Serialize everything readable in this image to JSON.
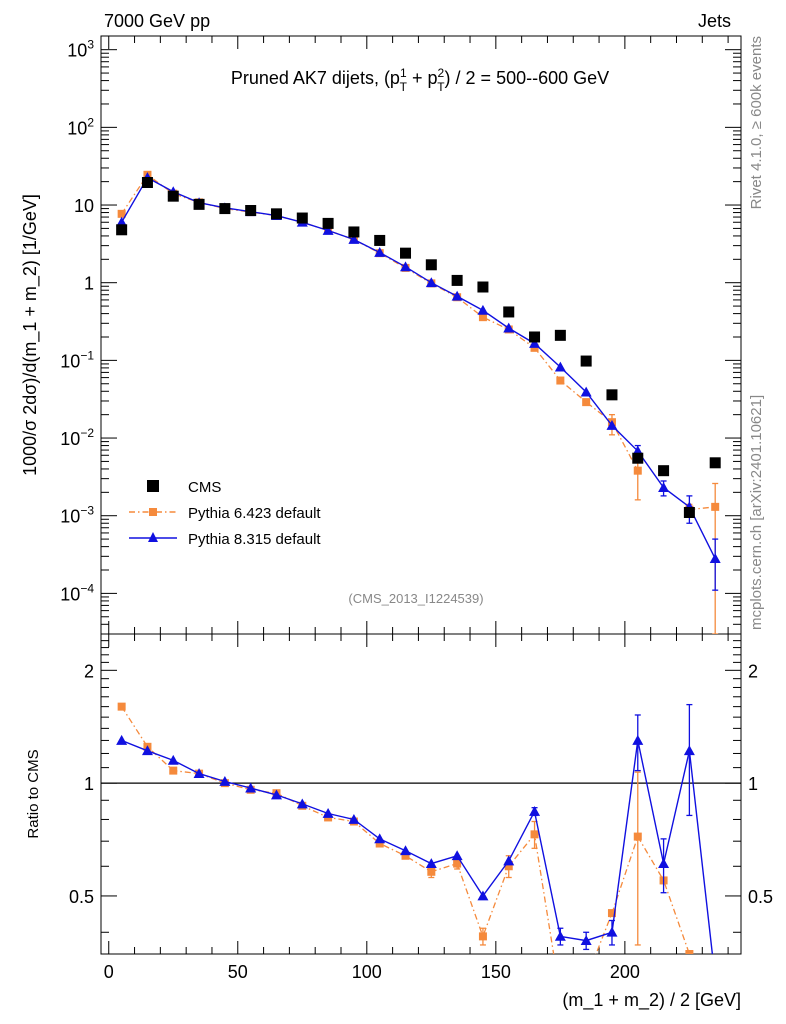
{
  "header": {
    "left": "7000 GeV pp",
    "right": "Jets",
    "rivet_label": "Rivet 4.1.0, ≥ 600k events",
    "mcplots_label": "mcplots.cern.ch [arXiv:2401.10621]",
    "analysis": "(CMS_2013_I1224539)"
  },
  "colors": {
    "cms": "#000000",
    "pythia6": "#f58a3c",
    "pythia8": "#1010e0"
  },
  "chart_data": [
    {
      "type": "scatter",
      "panel": "main",
      "title": "Pruned AK7 dijets, (p_T^1 + p_T^2) / 2 = 500--600 GeV",
      "title_parts": {
        "pre": "Pruned AK7 dijets, (p",
        "sup1": "1",
        "sub1": "T",
        "mid": " + p",
        "sup2": "2",
        "sub2": "T",
        "post": ") / 2 = 500--600 GeV"
      },
      "ylabel": "1000/σ   2dσ)/d(m_1 + m_2) [1/GeV]",
      "yscale": "log",
      "ylim": [
        3e-05,
        1500
      ],
      "xlim": [
        -3,
        245
      ],
      "y_ticks": [
        {
          "value": 0.0001,
          "base": "10",
          "exp": "−4"
        },
        {
          "value": 0.001,
          "base": "10",
          "exp": "−3"
        },
        {
          "value": 0.01,
          "base": "10",
          "exp": "−2"
        },
        {
          "value": 0.1,
          "base": "10",
          "exp": "−1"
        },
        {
          "value": 1,
          "base": "1",
          "exp": ""
        },
        {
          "value": 10,
          "base": "10",
          "exp": ""
        },
        {
          "value": 100,
          "base": "10",
          "exp": "2"
        },
        {
          "value": 1000,
          "base": "10",
          "exp": "3"
        }
      ],
      "x": [
        5,
        15,
        25,
        35,
        45,
        55,
        65,
        75,
        85,
        95,
        105,
        115,
        125,
        135,
        145,
        155,
        165,
        175,
        185,
        195,
        205,
        215,
        225,
        235
      ],
      "series": [
        {
          "name": "CMS",
          "style": "square",
          "values": [
            4.8,
            19.5,
            13,
            10.2,
            9.0,
            8.5,
            7.7,
            6.8,
            5.8,
            4.5,
            3.5,
            2.4,
            1.7,
            1.07,
            0.88,
            0.42,
            0.2,
            0.21,
            0.098,
            0.036,
            0.0055,
            0.0038,
            0.0011,
            0.0048
          ]
        },
        {
          "name": "Pythia 6.423 default",
          "style": "dashdot-square",
          "values": [
            7.7,
            24.5,
            14,
            10.8,
            9.0,
            8.1,
            7.3,
            6.0,
            4.7,
            3.6,
            2.4,
            1.55,
            0.98,
            0.65,
            0.36,
            0.25,
            0.145,
            0.055,
            0.029,
            0.016,
            0.0038,
            null,
            0.0012,
            0.0013
          ],
          "errors": [
            [
              0,
              0
            ],
            [
              0,
              0
            ],
            [
              0,
              0
            ],
            [
              0,
              0
            ],
            [
              0,
              0
            ],
            [
              0,
              0
            ],
            [
              0,
              0
            ],
            [
              0,
              0
            ],
            [
              0,
              0
            ],
            [
              0,
              0
            ],
            [
              0,
              0
            ],
            [
              0,
              0
            ],
            [
              0,
              0
            ],
            [
              0,
              0
            ],
            [
              0,
              0
            ],
            [
              0,
              0
            ],
            [
              0,
              0
            ],
            [
              0,
              0
            ],
            [
              0,
              0
            ],
            [
              0.005,
              0.004
            ],
            [
              0.0022,
              0.0015
            ],
            null,
            [
              0.0002,
              0.0002
            ],
            [
              0.00127,
              0.0013
            ]
          ]
        },
        {
          "name": "Pythia 8.315 default",
          "style": "solid-triangle",
          "values": [
            6.0,
            22.5,
            14.8,
            10.7,
            9.2,
            8.2,
            7.3,
            6.0,
            4.7,
            3.6,
            2.45,
            1.6,
            1.0,
            0.67,
            0.44,
            0.26,
            0.165,
            0.082,
            0.039,
            0.0145,
            0.0068,
            0.0023,
            0.0013,
            0.00028
          ],
          "errors": [
            [
              0,
              0
            ],
            [
              0,
              0
            ],
            [
              0,
              0
            ],
            [
              0,
              0
            ],
            [
              0,
              0
            ],
            [
              0,
              0
            ],
            [
              0,
              0
            ],
            [
              0,
              0
            ],
            [
              0,
              0
            ],
            [
              0,
              0
            ],
            [
              0,
              0
            ],
            [
              0,
              0
            ],
            [
              0,
              0
            ],
            [
              0,
              0
            ],
            [
              0,
              0
            ],
            [
              0,
              0
            ],
            [
              0,
              0
            ],
            [
              0,
              0
            ],
            [
              0,
              0
            ],
            [
              0,
              0
            ],
            [
              0.0011,
              0.0012
            ],
            [
              0.0005,
              0.0005
            ],
            [
              0.0005,
              0.0005
            ],
            [
              0.00017,
              0.00022
            ]
          ]
        }
      ],
      "legend": [
        "CMS",
        "Pythia 6.423 default",
        "Pythia 8.315 default"
      ],
      "legend_position": "bottom-left"
    },
    {
      "type": "line",
      "panel": "ratio",
      "ylabel": "Ratio to CMS",
      "xlabel": "(m_1 + m_2) / 2 [GeV]",
      "yscale": "log",
      "ylim": [
        0.35,
        2.5
      ],
      "xlim": [
        -3,
        245
      ],
      "y_ticks": [
        {
          "value": 0.5,
          "label": "0.5"
        },
        {
          "value": 1,
          "label": "1"
        },
        {
          "value": 2,
          "label": "2"
        }
      ],
      "x_ticks": [
        0,
        50,
        100,
        150,
        200
      ],
      "reference_line": 1,
      "x": [
        5,
        15,
        25,
        35,
        45,
        55,
        65,
        75,
        85,
        95,
        105,
        115,
        125,
        135,
        145,
        155,
        165,
        175,
        185,
        195,
        205,
        215,
        225,
        235
      ],
      "series": [
        {
          "name": "Pythia 6.423 default",
          "values": [
            1.6,
            1.25,
            1.08,
            1.06,
            1.0,
            0.96,
            0.94,
            0.87,
            0.81,
            0.79,
            0.69,
            0.64,
            0.58,
            0.61,
            0.39,
            0.6,
            0.73,
            0.27,
            0.3,
            0.45,
            0.72,
            0.55,
            0.35,
            0.27
          ],
          "errors": [
            null,
            null,
            null,
            null,
            null,
            null,
            null,
            null,
            null,
            null,
            null,
            null,
            [
              0.02,
              0.02
            ],
            [
              0.02,
              0.02
            ],
            [
              0.02,
              0.02
            ],
            [
              0.04,
              0.04
            ],
            [
              0.06,
              0.06
            ],
            null,
            null,
            null,
            [
              0.35,
              0.35
            ],
            null,
            null,
            null
          ]
        },
        {
          "name": "Pythia 8.315 default",
          "values": [
            1.3,
            1.22,
            1.15,
            1.06,
            1.01,
            0.97,
            0.93,
            0.88,
            0.83,
            0.8,
            0.71,
            0.66,
            0.61,
            0.64,
            0.5,
            0.62,
            0.84,
            0.39,
            0.38,
            0.4,
            1.3,
            0.61,
            1.22,
            0.3
          ],
          "errors": [
            null,
            null,
            null,
            null,
            null,
            null,
            null,
            null,
            null,
            null,
            null,
            null,
            null,
            null,
            null,
            null,
            [
              0.02,
              0.02
            ],
            [
              0.02,
              0.02
            ],
            [
              0.02,
              0.02
            ],
            [
              0.03,
              0.03
            ],
            [
              0.22,
              0.22
            ],
            [
              0.1,
              0.1
            ],
            [
              0.4,
              0.4
            ],
            null
          ]
        }
      ]
    }
  ]
}
